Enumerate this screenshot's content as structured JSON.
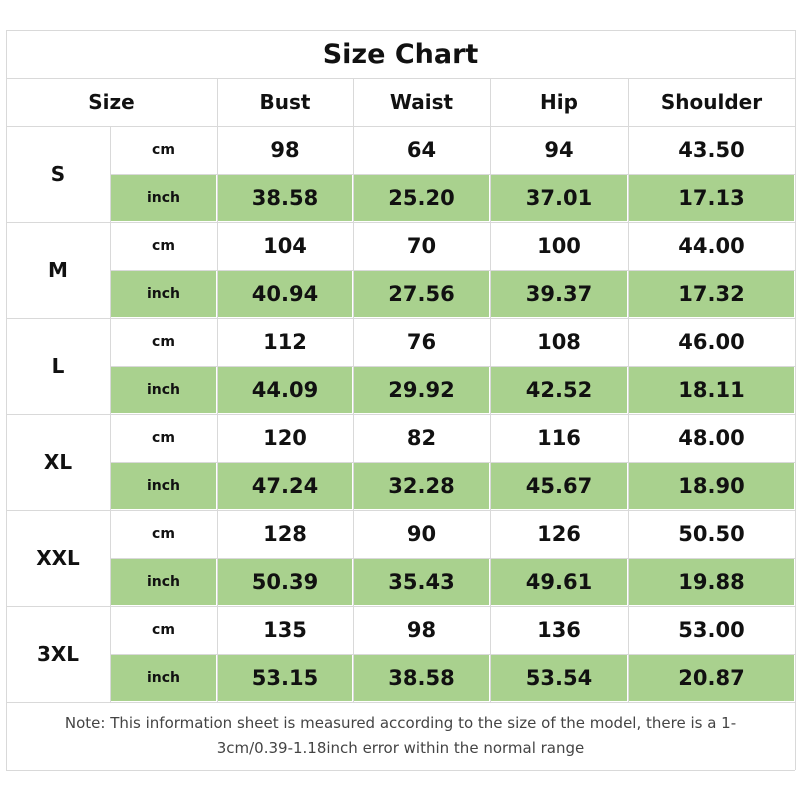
{
  "title": "Size Chart",
  "table": {
    "header": [
      "Size",
      "Bust",
      "Waist",
      "Hip",
      "Shoulder"
    ],
    "rows": [
      {
        "size": "S",
        "units": [
          {
            "unit": "cm",
            "values": [
              "98",
              "64",
              "94",
              "43.50"
            ]
          },
          {
            "unit": "inch",
            "values": [
              "38.58",
              "25.20",
              "37.01",
              "17.13"
            ]
          }
        ]
      },
      {
        "size": "M",
        "units": [
          {
            "unit": "cm",
            "values": [
              "104",
              "70",
              "100",
              "44.00"
            ]
          },
          {
            "unit": "inch",
            "values": [
              "40.94",
              "27.56",
              "39.37",
              "17.32"
            ]
          }
        ]
      },
      {
        "size": "L",
        "units": [
          {
            "unit": "cm",
            "values": [
              "112",
              "76",
              "108",
              "46.00"
            ]
          },
          {
            "unit": "inch",
            "values": [
              "44.09",
              "29.92",
              "42.52",
              "18.11"
            ]
          }
        ]
      },
      {
        "size": "XL",
        "units": [
          {
            "unit": "cm",
            "values": [
              "120",
              "82",
              "116",
              "48.00"
            ]
          },
          {
            "unit": "inch",
            "values": [
              "47.24",
              "32.28",
              "45.67",
              "18.90"
            ]
          }
        ]
      },
      {
        "size": "XXL",
        "units": [
          {
            "unit": "cm",
            "values": [
              "128",
              "90",
              "126",
              "50.50"
            ]
          },
          {
            "unit": "inch",
            "values": [
              "50.39",
              "35.43",
              "49.61",
              "19.88"
            ]
          }
        ]
      },
      {
        "size": "3XL",
        "units": [
          {
            "unit": "cm",
            "values": [
              "135",
              "98",
              "136",
              "53.00"
            ]
          },
          {
            "unit": "inch",
            "values": [
              "53.15",
              "38.58",
              "53.54",
              "20.87"
            ]
          }
        ]
      }
    ]
  },
  "note": "Note: This information sheet is measured according to the size of the model, there is a 1-3cm/0.39-1.18inch error within the normal range"
}
